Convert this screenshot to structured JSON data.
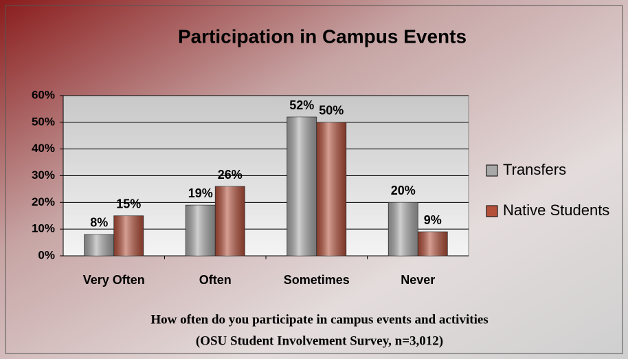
{
  "chart_data": {
    "type": "bar",
    "title": "Participation in Campus Events",
    "caption": [
      "How often do you participate in campus events and activities",
      "(OSU Student Involvement Survey, n=3,012)"
    ],
    "categories": [
      "Very Often",
      "Often",
      "Sometimes",
      "Never"
    ],
    "series": [
      {
        "name": "Transfers",
        "color": "#a8a8a8",
        "values": [
          8,
          19,
          52,
          20
        ],
        "value_labels": [
          "8%",
          "19%",
          "52%",
          "20%"
        ]
      },
      {
        "name": "Native Students",
        "color": "#b4503a",
        "values": [
          15,
          26,
          50,
          9
        ],
        "value_labels": [
          "15%",
          "26%",
          "50%",
          "9%"
        ]
      }
    ],
    "ylim": [
      0,
      60
    ],
    "yticks": [
      {
        "value": 0,
        "label": "0%"
      },
      {
        "value": 10,
        "label": "10%"
      },
      {
        "value": 20,
        "label": "20%"
      },
      {
        "value": 30,
        "label": "30%"
      },
      {
        "value": 40,
        "label": "40%"
      },
      {
        "value": 50,
        "label": "50%"
      },
      {
        "value": 60,
        "label": "60%"
      }
    ],
    "grid": true,
    "legend": "right"
  }
}
